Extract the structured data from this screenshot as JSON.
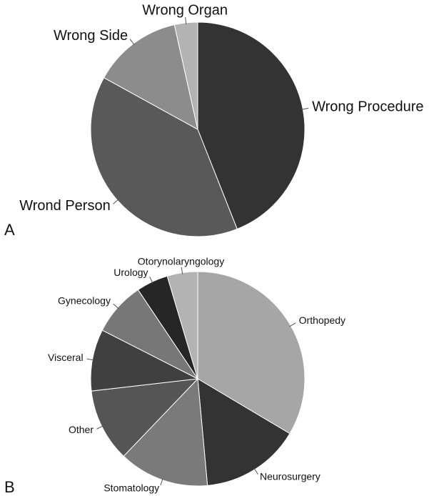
{
  "chart_data": [
    {
      "type": "pie",
      "panel_label": "A",
      "categories": [
        "Wrong Procedure",
        "Wrond Person",
        "Wrong Side",
        "Wrong Organ"
      ],
      "values": [
        44,
        39,
        13.5,
        3.5
      ],
      "colors": [
        "#333333",
        "#595959",
        "#8c8c8c",
        "#b3b3b3"
      ]
    },
    {
      "type": "pie",
      "panel_label": "B",
      "categories": [
        "Orthopedy",
        "Neurosurgery",
        "Stomatology",
        "Other",
        "Visceral",
        "Gynecology",
        "Urology",
        "Otorynolaryngology"
      ],
      "values": [
        33.5,
        15,
        13.6,
        11,
        9.3,
        8.1,
        4.8,
        4.6
      ],
      "colors": [
        "#a6a6a6",
        "#333333",
        "#7a7a7a",
        "#555555",
        "#404040",
        "#777777",
        "#262626",
        "#b3b3b3"
      ]
    }
  ]
}
